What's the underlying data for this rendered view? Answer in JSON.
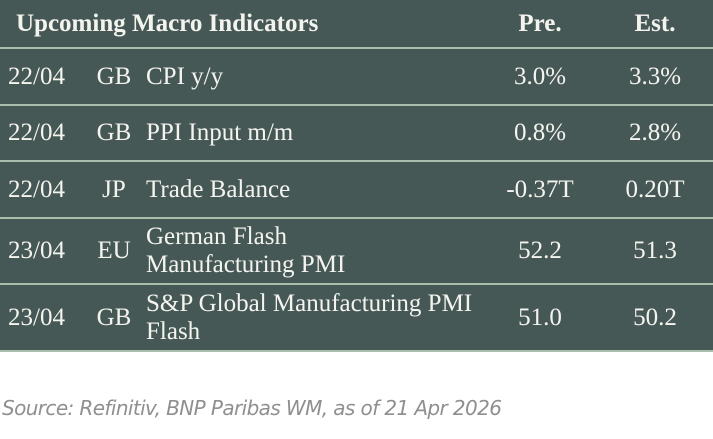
{
  "header": {
    "title": "Upcoming Macro Indicators",
    "pre": "Pre.",
    "est": "Est."
  },
  "rows": [
    {
      "date": "22/04",
      "country": "GB",
      "indicator": "CPI y/y",
      "pre": "3.0%",
      "est": "3.3%"
    },
    {
      "date": "22/04",
      "country": "GB",
      "indicator": "PPI Input m/m",
      "pre": "0.8%",
      "est": "2.8%"
    },
    {
      "date": "22/04",
      "country": "JP",
      "indicator": "Trade Balance",
      "pre": "-0.37T",
      "est": "0.20T"
    },
    {
      "date": "23/04",
      "country": "EU",
      "indicator": "German Flash Manufacturing PMI",
      "pre": "52.2",
      "est": "51.3"
    },
    {
      "date": "23/04",
      "country": "GB",
      "indicator": "S&P Global Manufacturing PMI Flash",
      "pre": "51.0",
      "est": "50.2"
    }
  ],
  "source": "Source: Refinitiv, BNP Paribas WM, as of 21 Apr 2026",
  "colors": {
    "table_bg": "#465856",
    "divider": "#a9bfae",
    "text": "#f4f4ef",
    "source": "#8f8f8f"
  }
}
